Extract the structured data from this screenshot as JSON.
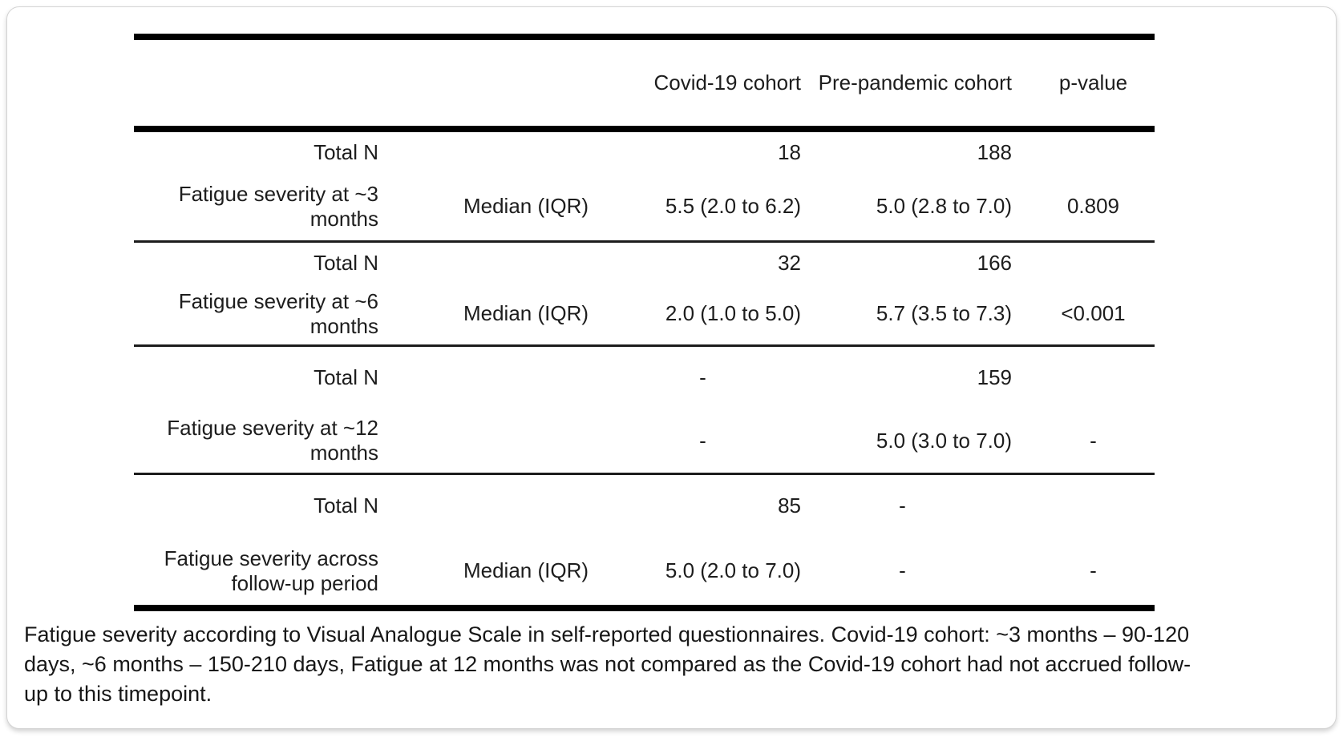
{
  "table": {
    "header": {
      "covid": "Covid-19 cohort",
      "prepandemic": "Pre-pandemic cohort",
      "p_value": "p-value"
    },
    "total_n_label": "Total N",
    "groups": [
      {
        "label": "Fatigue severity at ~3 months",
        "total_covid": "18",
        "total_prepandemic": "188",
        "stat_label": "Median (IQR)",
        "median_covid": "5.5 (2.0 to 6.2)",
        "median_prepandemic": "5.0 (2.8 to 7.0)",
        "median_p": "0.809"
      },
      {
        "label": "Fatigue severity at ~6 months",
        "total_covid": "32",
        "total_prepandemic": "166",
        "stat_label": "Median (IQR)",
        "median_covid": "2.0 (1.0 to 5.0)",
        "median_prepandemic": "5.7 (3.5 to 7.3)",
        "median_p": "<0.001"
      },
      {
        "label": "Fatigue severity at ~12 months",
        "total_covid": "-",
        "total_prepandemic": "159",
        "stat_label": "",
        "median_covid": "-",
        "median_prepandemic": "5.0 (3.0 to 7.0)",
        "median_p": "-"
      },
      {
        "label": "Fatigue severity across follow-up period",
        "total_covid": "85",
        "total_prepandemic": "-",
        "stat_label": "Median (IQR)",
        "median_covid": "5.0 (2.0 to 7.0)",
        "median_prepandemic": "-",
        "median_p": "-"
      }
    ]
  },
  "caption": "Fatigue severity according to Visual Analogue Scale in self-reported questionnaires. Covid-19 cohort: ~3 months – 90-120 days, ~6 months – 150-210 days, Fatigue at 12 months was not compared as the Covid-19 cohort had not accrued follow-up to this timepoint."
}
